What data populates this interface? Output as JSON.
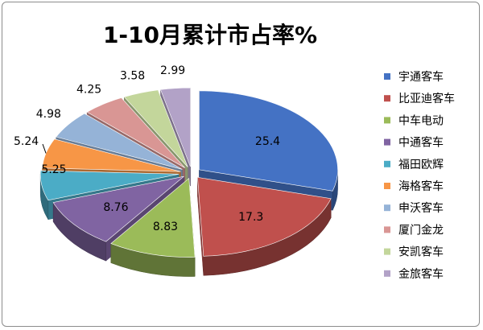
{
  "chart_data": {
    "type": "pie",
    "title": "1-10月累计市占率%",
    "legend_position": "right",
    "slices": [
      {
        "label": "宇通客车",
        "value": 25.4,
        "color": "#4472c4"
      },
      {
        "label": "比亚迪客车",
        "value": 17.3,
        "color": "#c0504d"
      },
      {
        "label": "中车电动",
        "value": 8.83,
        "color": "#9bbb59"
      },
      {
        "label": "中通客车",
        "value": 8.76,
        "color": "#8064a2"
      },
      {
        "label": "福田欧辉",
        "value": 5.25,
        "color": "#4bacc6"
      },
      {
        "label": "海格客车",
        "value": 5.24,
        "color": "#f79646"
      },
      {
        "label": "申沃客车",
        "value": 4.98,
        "color": "#95b3d7"
      },
      {
        "label": "厦门金龙",
        "value": 4.25,
        "color": "#d99694"
      },
      {
        "label": "安凯客车",
        "value": 3.58,
        "color": "#c3d69b"
      },
      {
        "label": "金旅客车",
        "value": 2.99,
        "color": "#b2a2c7"
      }
    ]
  }
}
